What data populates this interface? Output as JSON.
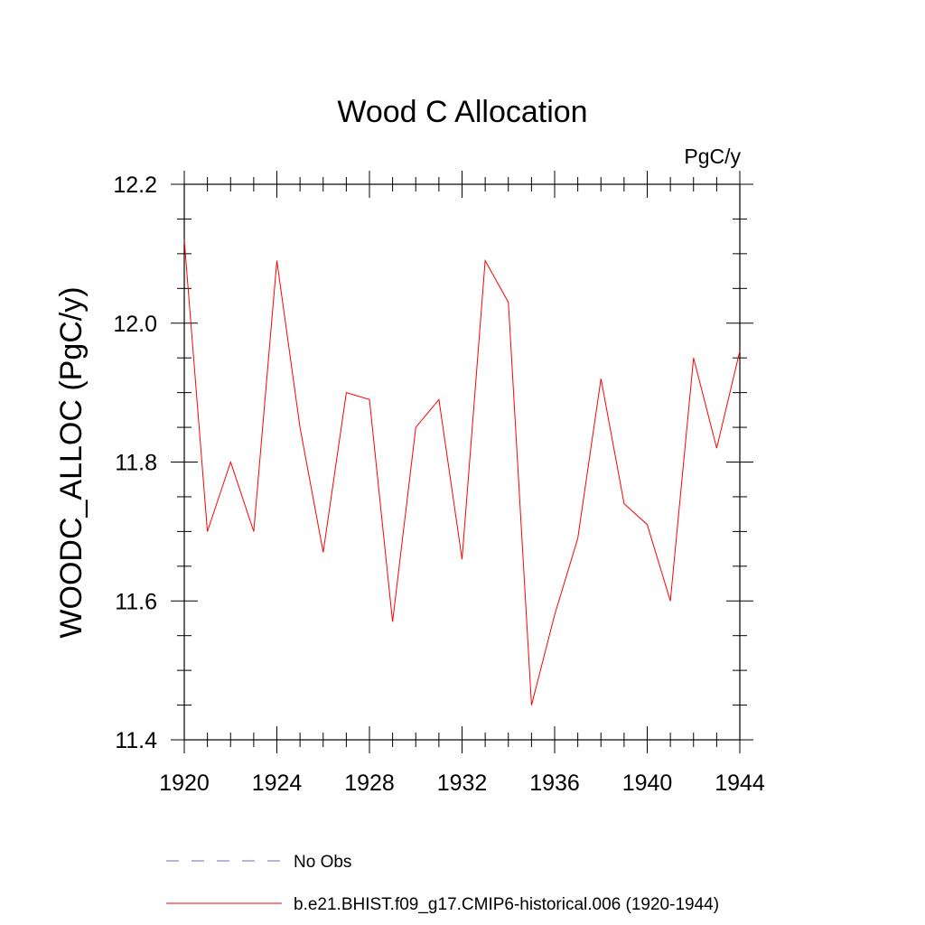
{
  "chart_data": {
    "type": "line",
    "title": "Wood C Allocation",
    "units_label": "PgC/y",
    "ylabel": "WOODC_ALLOC  (PgC/y)",
    "xlabel": "",
    "xlim": [
      1920,
      1944
    ],
    "ylim": [
      11.4,
      12.2
    ],
    "x_major_ticks": [
      1920,
      1924,
      1928,
      1932,
      1936,
      1940,
      1944
    ],
    "x_tick_labels": [
      "1920",
      "1924",
      "1928",
      "1932",
      "1936",
      "1940",
      "1944"
    ],
    "y_major_ticks": [
      11.4,
      11.6,
      11.8,
      12.0,
      12.2
    ],
    "y_tick_labels": [
      "11.4",
      "11.6",
      "11.8",
      "12.0",
      "12.2"
    ],
    "grid": false,
    "legend_placement": "bottom",
    "x": [
      1920,
      1921,
      1922,
      1923,
      1924,
      1925,
      1926,
      1927,
      1928,
      1929,
      1930,
      1931,
      1932,
      1933,
      1934,
      1935,
      1936,
      1937,
      1938,
      1939,
      1940,
      1941,
      1942,
      1943,
      1944
    ],
    "series": [
      {
        "name": "b.e21.BHIST.f09_g17.CMIP6-historical.006 (1920-1944)",
        "color": "#ff0000",
        "style": "solid",
        "values": [
          12.12,
          11.7,
          11.8,
          11.7,
          12.09,
          11.85,
          11.67,
          11.9,
          11.89,
          11.57,
          11.85,
          11.89,
          11.66,
          12.09,
          12.03,
          11.45,
          11.58,
          11.69,
          11.92,
          11.74,
          11.71,
          11.6,
          11.95,
          11.82,
          11.96
        ]
      }
    ],
    "legend": [
      {
        "label": "No Obs",
        "color": "#6b6bc0",
        "style": "dashed"
      },
      {
        "label": "b.e21.BHIST.f09_g17.CMIP6-historical.006 (1920-1944)",
        "color": "#ff0000",
        "style": "solid"
      }
    ]
  }
}
